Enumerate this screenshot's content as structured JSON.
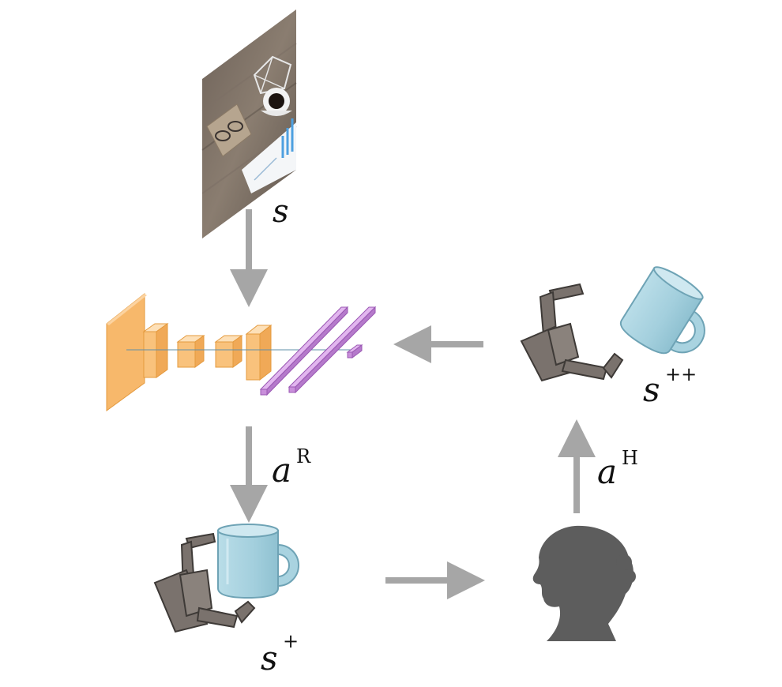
{
  "labels": {
    "state": "s",
    "state_plus": "s",
    "state_plus_sup": "+",
    "state_plusplus": "s",
    "state_plusplus_sup": "++",
    "robot_action": "a",
    "robot_action_sup": "R",
    "human_action": "a",
    "human_action_sup": "H"
  },
  "colors": {
    "arrow": "#a6a6a6",
    "conv_orange": "#f9c27c",
    "conv_orange_edge": "#e49a3e",
    "fc_purple": "#c98fdb",
    "fc_purple_edge": "#9a57b3",
    "mug": "#a9d3e0",
    "mug_edge": "#6ea3b5",
    "gripper": "#7a726d",
    "gripper_edge": "#3e3a37",
    "human_silhouette": "#5d5d5d"
  }
}
